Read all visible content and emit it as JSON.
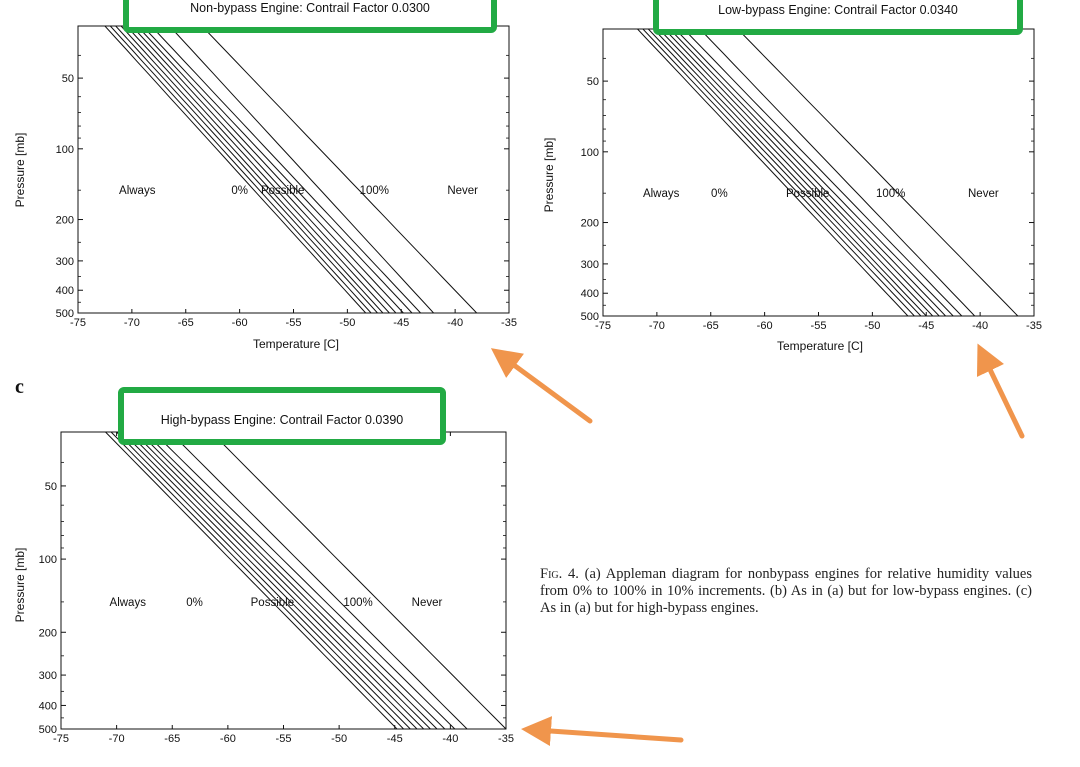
{
  "caption": {
    "label": "Fig. 4.",
    "text": "(a) Appleman diagram for nonbypass engines for relative humidity values from 0% to 100% in 10% increments. (b) As in (a) but for low-bypass engines. (c) As in (a) but for high-bypass engines."
  },
  "colors": {
    "highlight_box": "#22aa44",
    "arrow": "#f0954c",
    "line": "#111111"
  },
  "chart_data": [
    {
      "type": "line",
      "panel_label": "",
      "title": "Non-bypass Engine:  Contrail Factor 0.0300",
      "xlabel": "Temperature [C]",
      "ylabel": "Pressure [mb]",
      "xlim": [
        -75,
        -35
      ],
      "ylim": [
        500,
        30
      ],
      "y_scale": "log",
      "x_ticks": [
        "-75",
        "-70",
        "-65",
        "-60",
        "-55",
        "-50",
        "-45",
        "-40",
        "-35"
      ],
      "y_ticks": [
        {
          "value": 50,
          "label": "50"
        },
        {
          "value": 100,
          "label": "100"
        },
        {
          "value": 200,
          "label": "200"
        },
        {
          "value": 300,
          "label": "300"
        },
        {
          "value": 400,
          "label": "400"
        },
        {
          "value": 500,
          "label": "500"
        }
      ],
      "annotations": [
        {
          "text": "Always",
          "x": -69.5,
          "y": 150
        },
        {
          "text": "0%",
          "x": -60.0,
          "y": 150
        },
        {
          "text": "Possible",
          "x": -56.0,
          "y": 150
        },
        {
          "text": "100%",
          "x": -47.5,
          "y": 150
        },
        {
          "text": "Never",
          "x": -39.3,
          "y": 150
        }
      ],
      "relative_humidity_percent": [
        0,
        10,
        20,
        30,
        40,
        50,
        60,
        70,
        80,
        90,
        100
      ],
      "curve_temps_at_30mb": [
        -72.5,
        -72.0,
        -71.5,
        -71.0,
        -70.5,
        -70.0,
        -69.5,
        -69.0,
        -68.2,
        -66.5,
        -63.5
      ],
      "curve_temps_at_500mb": [
        -48.3,
        -47.8,
        -47.2,
        -46.7,
        -46.1,
        -45.5,
        -44.8,
        -44.0,
        -43.2,
        -42.0,
        -38.0
      ],
      "grid": false,
      "legend": "none",
      "highlighted": true
    },
    {
      "type": "line",
      "panel_label": "",
      "title": "Low-bypass Engine:  Contrail Factor 0.0340",
      "xlabel": "Temperature [C]",
      "ylabel": "Pressure [mb]",
      "xlim": [
        -75,
        -35
      ],
      "ylim": [
        500,
        30
      ],
      "y_scale": "log",
      "x_ticks": [
        "-75",
        "-70",
        "-65",
        "-60",
        "-55",
        "-50",
        "-45",
        "-40",
        "-35"
      ],
      "y_ticks": [
        {
          "value": 50,
          "label": "50"
        },
        {
          "value": 100,
          "label": "100"
        },
        {
          "value": 200,
          "label": "200"
        },
        {
          "value": 300,
          "label": "300"
        },
        {
          "value": 400,
          "label": "400"
        },
        {
          "value": 500,
          "label": "500"
        }
      ],
      "annotations": [
        {
          "text": "Always",
          "x": -69.6,
          "y": 150
        },
        {
          "text": "0%",
          "x": -64.2,
          "y": 150
        },
        {
          "text": "Possible",
          "x": -56.0,
          "y": 150
        },
        {
          "text": "100%",
          "x": -48.3,
          "y": 150
        },
        {
          "text": "Never",
          "x": -39.7,
          "y": 150
        }
      ],
      "relative_humidity_percent": [
        0,
        10,
        20,
        30,
        40,
        50,
        60,
        70,
        80,
        90,
        100
      ],
      "curve_temps_at_30mb": [
        -71.8,
        -71.3,
        -70.8,
        -70.3,
        -69.8,
        -69.3,
        -68.8,
        -68.3,
        -67.5,
        -66.0,
        -62.5
      ],
      "curve_temps_at_500mb": [
        -46.7,
        -46.1,
        -45.5,
        -45.0,
        -44.4,
        -43.8,
        -43.2,
        -42.5,
        -41.7,
        -40.5,
        -36.5
      ],
      "grid": false,
      "legend": "none",
      "highlighted": true
    },
    {
      "type": "line",
      "panel_label": "c",
      "title": "High-bypass Engine:  Contrail Factor 0.0390",
      "xlabel": "",
      "ylabel": "Pressure [mb]",
      "xlim": [
        -75,
        -35
      ],
      "ylim": [
        500,
        30
      ],
      "y_scale": "log",
      "x_ticks": [
        "-75",
        "-70",
        "-65",
        "-60",
        "-55",
        "-50",
        "-45",
        "-40",
        "-35"
      ],
      "y_ticks": [
        {
          "value": 50,
          "label": "50"
        },
        {
          "value": 100,
          "label": "100"
        },
        {
          "value": 200,
          "label": "200"
        },
        {
          "value": 300,
          "label": "300"
        },
        {
          "value": 400,
          "label": "400"
        },
        {
          "value": 500,
          "label": "500"
        }
      ],
      "annotations": [
        {
          "text": "Always",
          "x": -69.0,
          "y": 150
        },
        {
          "text": "0%",
          "x": -63.0,
          "y": 150
        },
        {
          "text": "Possible",
          "x": -56.0,
          "y": 150
        },
        {
          "text": "100%",
          "x": -48.3,
          "y": 150
        },
        {
          "text": "Never",
          "x": -42.1,
          "y": 150
        }
      ],
      "relative_humidity_percent": [
        0,
        10,
        20,
        30,
        40,
        50,
        60,
        70,
        80,
        90,
        100
      ],
      "curve_temps_at_30mb": [
        -71.0,
        -70.5,
        -70.0,
        -69.5,
        -69.0,
        -68.5,
        -68.0,
        -67.5,
        -66.7,
        -65.2,
        -61.5
      ],
      "curve_temps_at_500mb": [
        -44.8,
        -44.2,
        -43.6,
        -43.0,
        -42.4,
        -41.8,
        -41.2,
        -40.5,
        -39.6,
        -38.5,
        -35.0
      ],
      "grid": false,
      "legend": "none",
      "highlighted": true
    }
  ]
}
